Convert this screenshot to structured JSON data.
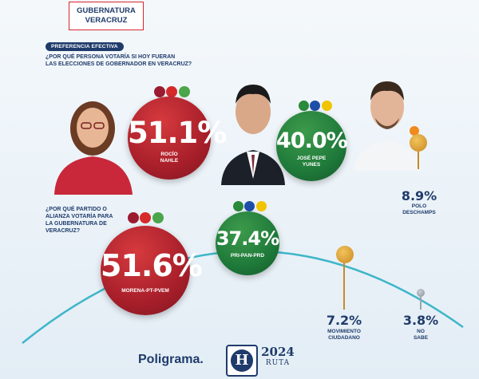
{
  "header": {
    "line1": "GUBERNATURA",
    "line2": "VERACRUZ"
  },
  "section_pill": "PREFERENCIA EFECTIVA",
  "q1": {
    "line1": "¿POR QUÉ PERSONA VOTARÍA SI HOY FUERAN",
    "line2": "LAS ELECCIONES DE GOBERNADOR EN VERACRUZ?"
  },
  "q2": {
    "line1": "¿POR QUÉ PARTIDO O",
    "line2": "ALIANZA VOTARÍA PARA",
    "line3": "LA GUBERNATURA DE",
    "line4": "VERACRUZ?"
  },
  "colors": {
    "red": "#a81f2a",
    "green": "#1f7a3a",
    "navy": "#1f3b6b",
    "gold": "#d59a2a",
    "grey": "#9aa3ab"
  },
  "chart_data": [
    {
      "type": "bubble",
      "series": [
        {
          "name": "ROCÍO NAHLE",
          "value": 51.1,
          "label": "51.1%",
          "cap1": "ROCÍO",
          "cap2": "NAHLE"
        },
        {
          "name": "JOSÉ PEPE YUNES",
          "value": 40.0,
          "label": "40.0%",
          "cap1": "JOSÉ PEPE",
          "cap2": "YUNES"
        },
        {
          "name": "POLO DESCHAMPS",
          "value": 8.9,
          "label": "8.9%",
          "cap1": "POLO",
          "cap2": "DESCHAMPS"
        }
      ]
    },
    {
      "type": "bubble",
      "series": [
        {
          "name": "MORENA-PT-PVEM",
          "value": 51.6,
          "label": "51.6%"
        },
        {
          "name": "PRI-PAN-PRD",
          "value": 37.4,
          "label": "37.4%"
        },
        {
          "name": "MOVIMIENTO CIUDADANO",
          "value": 7.2,
          "label": "7.2%",
          "cap1": "MOVIMIENTO",
          "cap2": "CIUDADANO"
        },
        {
          "name": "NO SABE",
          "value": 3.8,
          "label": "3.8%",
          "cap1": "NO",
          "cap2": "SABE"
        }
      ]
    }
  ],
  "footer": {
    "poligrama": "Poligrama.",
    "h": "H",
    "year": "2024",
    "ruta": "RUTA"
  }
}
